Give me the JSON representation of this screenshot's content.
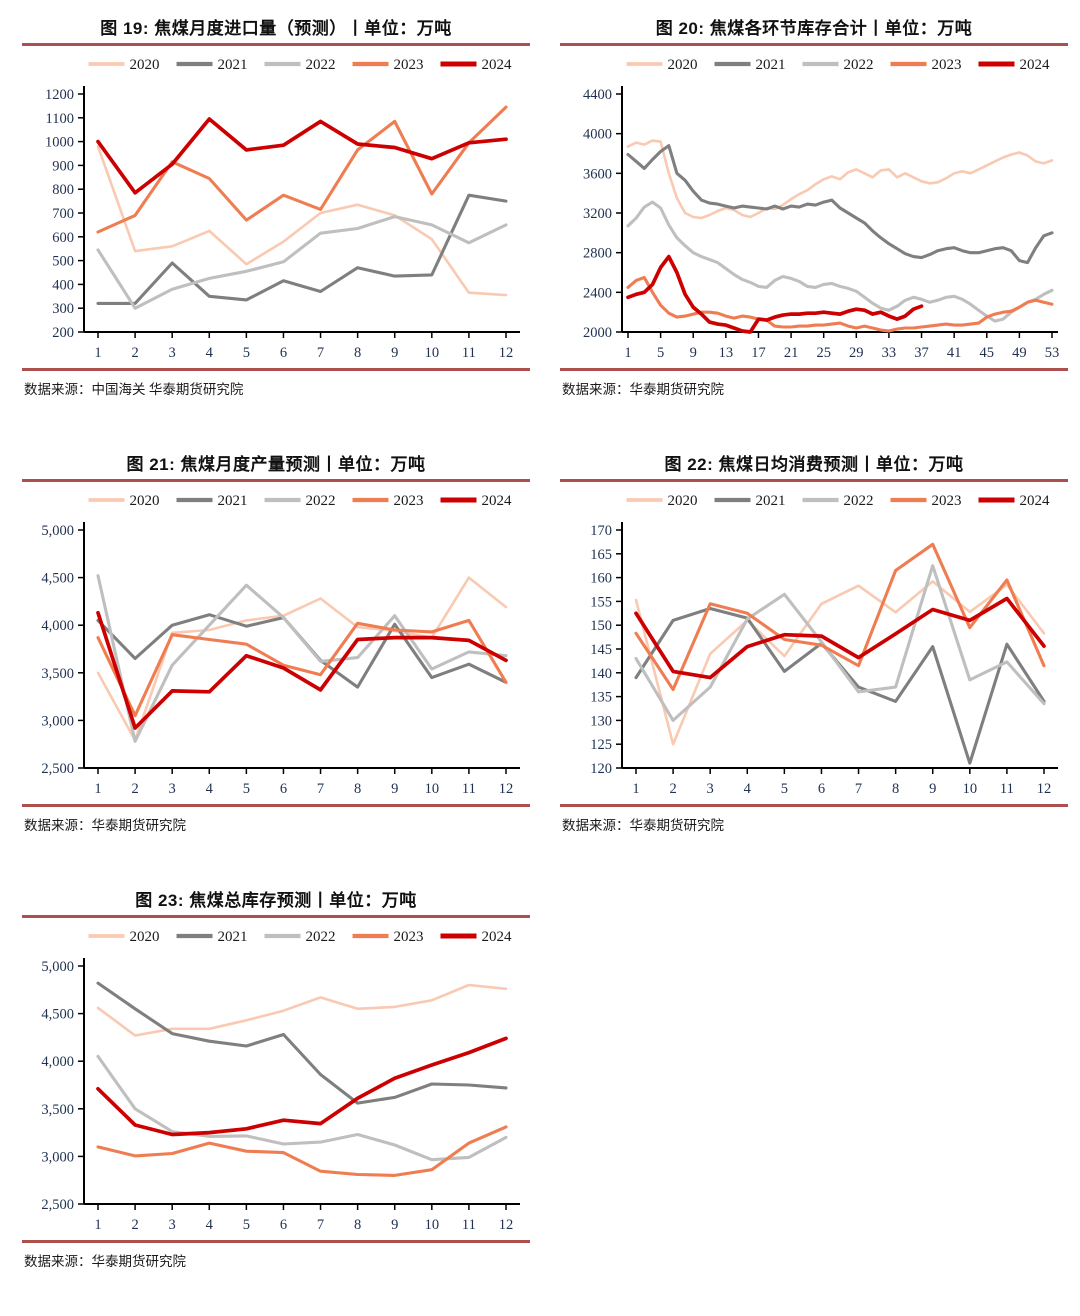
{
  "page": {
    "background": "#FFFFFF"
  },
  "colors": {
    "2020": "#F9C9B1",
    "2021": "#7F7F7F",
    "2022": "#BFBFBF",
    "2023": "#EF7D51",
    "2024": "#CC0000"
  },
  "widths": {
    "2020": 2.6,
    "2021": 3.1,
    "2022": 3.1,
    "2023": 3.1,
    "2024": 3.7
  },
  "rule_color": "#AC4F4F",
  "tick_label_color": "#1F3050",
  "chart_data": [
    {
      "type": "line",
      "title": "图 19: 焦煤月度进口量（预测）丨单位：万吨",
      "source": "数据来源：中国海关 华泰期货研究院",
      "ylim": [
        200,
        1200
      ],
      "y_step": 100,
      "y_comma": false,
      "x": {
        "min": 1,
        "max": 12,
        "ticks": [
          1,
          2,
          3,
          4,
          5,
          6,
          7,
          8,
          9,
          10,
          11,
          12
        ],
        "pad": 14
      },
      "legend_position": "top",
      "grid": false,
      "xlabel": "",
      "ylabel": "",
      "series": [
        {
          "name": "2020",
          "values": [
            980,
            540,
            560,
            625,
            485,
            580,
            700,
            735,
            690,
            590,
            365,
            355
          ]
        },
        {
          "name": "2021",
          "values": [
            320,
            320,
            490,
            350,
            335,
            415,
            370,
            470,
            435,
            440,
            775,
            750
          ]
        },
        {
          "name": "2022",
          "values": [
            545,
            300,
            380,
            425,
            455,
            495,
            615,
            635,
            685,
            650,
            575,
            650
          ]
        },
        {
          "name": "2023",
          "values": [
            620,
            690,
            915,
            845,
            670,
            775,
            715,
            965,
            1085,
            780,
            995,
            1145
          ]
        },
        {
          "name": "2024",
          "values": [
            1000,
            785,
            905,
            1095,
            965,
            985,
            1085,
            990,
            975,
            928,
            995,
            1010
          ]
        }
      ]
    },
    {
      "type": "line",
      "title": "图 20: 焦煤各环节库存合计丨单位：万吨",
      "source": "数据来源：华泰期货研究院",
      "ylim": [
        2000,
        4400
      ],
      "y_step": 400,
      "y_comma": false,
      "x": {
        "min": 1,
        "max": 53,
        "ticks": [
          1,
          5,
          9,
          13,
          17,
          21,
          25,
          29,
          33,
          37,
          41,
          45,
          49,
          53
        ],
        "pad": 6
      },
      "legend_position": "top",
      "grid": false,
      "xlabel": "",
      "ylabel": "",
      "series": [
        {
          "name": "2020",
          "values": [
            3870,
            3910,
            3890,
            3930,
            3920,
            3600,
            3350,
            3200,
            3160,
            3150,
            3180,
            3220,
            3250,
            3230,
            3180,
            3160,
            3200,
            3250,
            3240,
            3280,
            3340,
            3390,
            3430,
            3490,
            3540,
            3570,
            3540,
            3610,
            3640,
            3600,
            3560,
            3630,
            3640,
            3560,
            3600,
            3560,
            3520,
            3500,
            3510,
            3550,
            3600,
            3620,
            3600,
            3640,
            3680,
            3720,
            3760,
            3790,
            3810,
            3780,
            3720,
            3700,
            3730
          ]
        },
        {
          "name": "2021",
          "values": [
            3790,
            3720,
            3650,
            3740,
            3820,
            3880,
            3600,
            3530,
            3420,
            3330,
            3300,
            3290,
            3270,
            3250,
            3270,
            3260,
            3250,
            3240,
            3270,
            3240,
            3270,
            3260,
            3290,
            3280,
            3310,
            3330,
            3250,
            3200,
            3150,
            3100,
            3020,
            2950,
            2890,
            2840,
            2790,
            2760,
            2750,
            2780,
            2820,
            2840,
            2850,
            2820,
            2800,
            2800,
            2820,
            2840,
            2850,
            2820,
            2720,
            2700,
            2850,
            2970,
            3000
          ]
        },
        {
          "name": "2022",
          "values": [
            3070,
            3150,
            3260,
            3310,
            3250,
            3080,
            2950,
            2870,
            2800,
            2760,
            2730,
            2700,
            2640,
            2580,
            2530,
            2500,
            2460,
            2450,
            2520,
            2560,
            2540,
            2510,
            2460,
            2450,
            2480,
            2490,
            2460,
            2440,
            2410,
            2350,
            2290,
            2240,
            2220,
            2260,
            2320,
            2350,
            2330,
            2300,
            2320,
            2350,
            2360,
            2330,
            2280,
            2220,
            2160,
            2110,
            2130,
            2200,
            2250,
            2300,
            2330,
            2380,
            2420
          ]
        },
        {
          "name": "2023",
          "values": [
            2450,
            2520,
            2550,
            2400,
            2270,
            2190,
            2150,
            2160,
            2180,
            2200,
            2200,
            2190,
            2160,
            2140,
            2160,
            2150,
            2130,
            2120,
            2060,
            2050,
            2050,
            2060,
            2060,
            2070,
            2070,
            2080,
            2090,
            2060,
            2040,
            2060,
            2040,
            2020,
            2010,
            2030,
            2040,
            2040,
            2050,
            2060,
            2070,
            2080,
            2070,
            2070,
            2080,
            2090,
            2150,
            2180,
            2200,
            2210,
            2250,
            2300,
            2320,
            2300,
            2280
          ]
        },
        {
          "name": "2024",
          "values": [
            2350,
            2380,
            2400,
            2480,
            2650,
            2760,
            2600,
            2380,
            2250,
            2180,
            2100,
            2080,
            2070,
            2040,
            2010,
            2000,
            2130,
            2120,
            2150,
            2170,
            2180,
            2180,
            2190,
            2190,
            2200,
            2190,
            2180,
            2210,
            2230,
            2220,
            2180,
            2200,
            2160,
            2130,
            2160,
            2230,
            2260
          ]
        }
      ]
    },
    {
      "type": "line",
      "title": "图 21: 焦煤月度产量预测丨单位：万吨",
      "source": "数据来源：华泰期货研究院",
      "ylim": [
        2500,
        5000
      ],
      "y_step": 500,
      "y_comma": true,
      "x": {
        "min": 1,
        "max": 12,
        "ticks": [
          1,
          2,
          3,
          4,
          5,
          6,
          7,
          8,
          9,
          10,
          11,
          12
        ],
        "pad": 14
      },
      "legend_position": "top",
      "grid": false,
      "xlabel": "",
      "ylabel": "",
      "series": [
        {
          "name": "2020",
          "values": [
            3500,
            2790,
            3920,
            3950,
            4050,
            4100,
            4280,
            3980,
            3940,
            3870,
            4500,
            4190
          ]
        },
        {
          "name": "2021",
          "values": [
            4050,
            3650,
            4000,
            4110,
            3990,
            4080,
            3630,
            3350,
            4010,
            3450,
            3590,
            3400
          ]
        },
        {
          "name": "2022",
          "values": [
            4520,
            2780,
            3580,
            4000,
            4420,
            4080,
            3620,
            3660,
            4100,
            3540,
            3720,
            3680
          ]
        },
        {
          "name": "2023",
          "values": [
            3870,
            3050,
            3900,
            3850,
            3800,
            3580,
            3480,
            4020,
            3950,
            3930,
            4050,
            3400
          ]
        },
        {
          "name": "2024",
          "values": [
            4130,
            2920,
            3310,
            3300,
            3680,
            3550,
            3320,
            3850,
            3870,
            3870,
            3840,
            3630
          ]
        }
      ]
    },
    {
      "type": "line",
      "title": "图 22: 焦煤日均消费预测丨单位：万吨",
      "source": "数据来源：华泰期货研究院",
      "ylim": [
        120,
        170
      ],
      "y_step": 5,
      "y_comma": false,
      "x": {
        "min": 1,
        "max": 12,
        "ticks": [
          1,
          2,
          3,
          4,
          5,
          6,
          7,
          8,
          9,
          10,
          11,
          12
        ],
        "pad": 14
      },
      "legend_position": "top",
      "grid": false,
      "xlabel": "",
      "ylabel": "",
      "series": [
        {
          "name": "2020",
          "values": [
            155.3,
            125,
            144,
            151,
            143.5,
            154.5,
            158.3,
            152.7,
            159.2,
            152.8,
            158.5,
            148.3
          ]
        },
        {
          "name": "2021",
          "values": [
            139,
            151,
            153.5,
            151.5,
            140.3,
            146.2,
            137,
            134,
            145.5,
            121,
            146,
            134
          ]
        },
        {
          "name": "2022",
          "values": [
            143,
            130,
            137,
            151.3,
            156.5,
            146.5,
            136,
            137,
            162.5,
            138.5,
            142.3,
            133.5
          ]
        },
        {
          "name": "2023",
          "values": [
            148.3,
            136.5,
            154.5,
            152.5,
            147,
            145.8,
            141.5,
            161.5,
            167,
            149.5,
            159.5,
            141.5
          ]
        },
        {
          "name": "2024",
          "values": [
            152.5,
            140.3,
            139,
            145.5,
            148,
            147.7,
            143.2,
            148.2,
            153.3,
            151,
            155.6,
            145.6
          ]
        }
      ]
    },
    {
      "type": "line",
      "title": "图 23: 焦煤总库存预测丨单位：万吨",
      "source": "数据来源：华泰期货研究院",
      "ylim": [
        2500,
        5000
      ],
      "y_step": 500,
      "y_comma": true,
      "x": {
        "min": 1,
        "max": 12,
        "ticks": [
          1,
          2,
          3,
          4,
          5,
          6,
          7,
          8,
          9,
          10,
          11,
          12
        ],
        "pad": 14
      },
      "legend_position": "top",
      "grid": false,
      "xlabel": "",
      "ylabel": "",
      "series": [
        {
          "name": "2020",
          "values": [
            4560,
            4270,
            4340,
            4340,
            4430,
            4530,
            4670,
            4550,
            4570,
            4640,
            4800,
            4760
          ]
        },
        {
          "name": "2021",
          "values": [
            4820,
            4550,
            4290,
            4210,
            4160,
            4280,
            3860,
            3560,
            3620,
            3760,
            3750,
            3720
          ]
        },
        {
          "name": "2022",
          "values": [
            4050,
            3500,
            3260,
            3210,
            3215,
            3130,
            3150,
            3230,
            3120,
            2965,
            2990,
            3200
          ]
        },
        {
          "name": "2023",
          "values": [
            3100,
            3005,
            3030,
            3140,
            3055,
            3040,
            2845,
            2810,
            2800,
            2860,
            3140,
            3310
          ]
        },
        {
          "name": "2024",
          "values": [
            3710,
            3330,
            3230,
            3250,
            3290,
            3380,
            3345,
            3610,
            3820,
            3960,
            4090,
            4240
          ]
        }
      ]
    }
  ]
}
